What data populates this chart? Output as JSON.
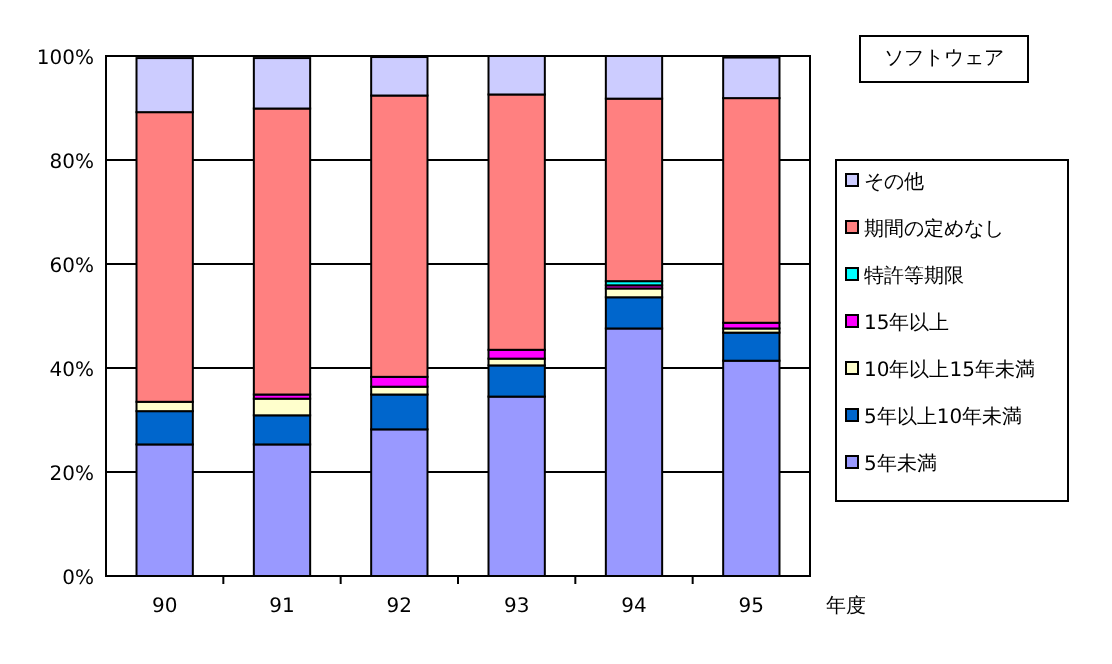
{
  "chart_data": {
    "type": "bar",
    "title": "ソフトウェア",
    "xlabel": "年度",
    "categories": [
      "90",
      "91",
      "92",
      "93",
      "94",
      "95"
    ],
    "stacked": true,
    "series": [
      {
        "name": "5年未満",
        "color": "#9999ff",
        "values": [
          25.3,
          25.3,
          28.2,
          34.5,
          47.6,
          41.4
        ]
      },
      {
        "name": "5年以上10年未満",
        "color": "#0066cc",
        "values": [
          6.4,
          5.6,
          6.7,
          6.0,
          6.0,
          5.4
        ]
      },
      {
        "name": "10年以上15年未満",
        "color": "#ffffcc",
        "values": [
          1.8,
          3.2,
          1.5,
          1.3,
          1.7,
          0.8
        ]
      },
      {
        "name": "15年以上",
        "color": "#ff00ff",
        "values": [
          null,
          0.8,
          1.9,
          1.7,
          0.6,
          1.1
        ]
      },
      {
        "name": "特許等期限",
        "color": "#00ffff",
        "values": [
          null,
          null,
          null,
          null,
          0.8,
          null
        ]
      },
      {
        "name": "期間の定めなし",
        "color": "#ff8080",
        "values": [
          55.7,
          55.0,
          54.1,
          49.1,
          35.1,
          43.2
        ]
      },
      {
        "name": "その他",
        "color": "#ccccff",
        "values": [
          10.4,
          9.7,
          7.4,
          7.4,
          8.2,
          7.8
        ]
      }
    ],
    "ylim": [
      0,
      100
    ],
    "yticks": [
      {
        "value": 0,
        "label": "0%"
      },
      {
        "value": 20,
        "label": "20%"
      },
      {
        "value": 40,
        "label": "40%"
      },
      {
        "value": 60,
        "label": "60%"
      },
      {
        "value": 80,
        "label": "80%"
      },
      {
        "value": 100,
        "label": "100%"
      }
    ],
    "grid": "y",
    "legend": "right"
  }
}
